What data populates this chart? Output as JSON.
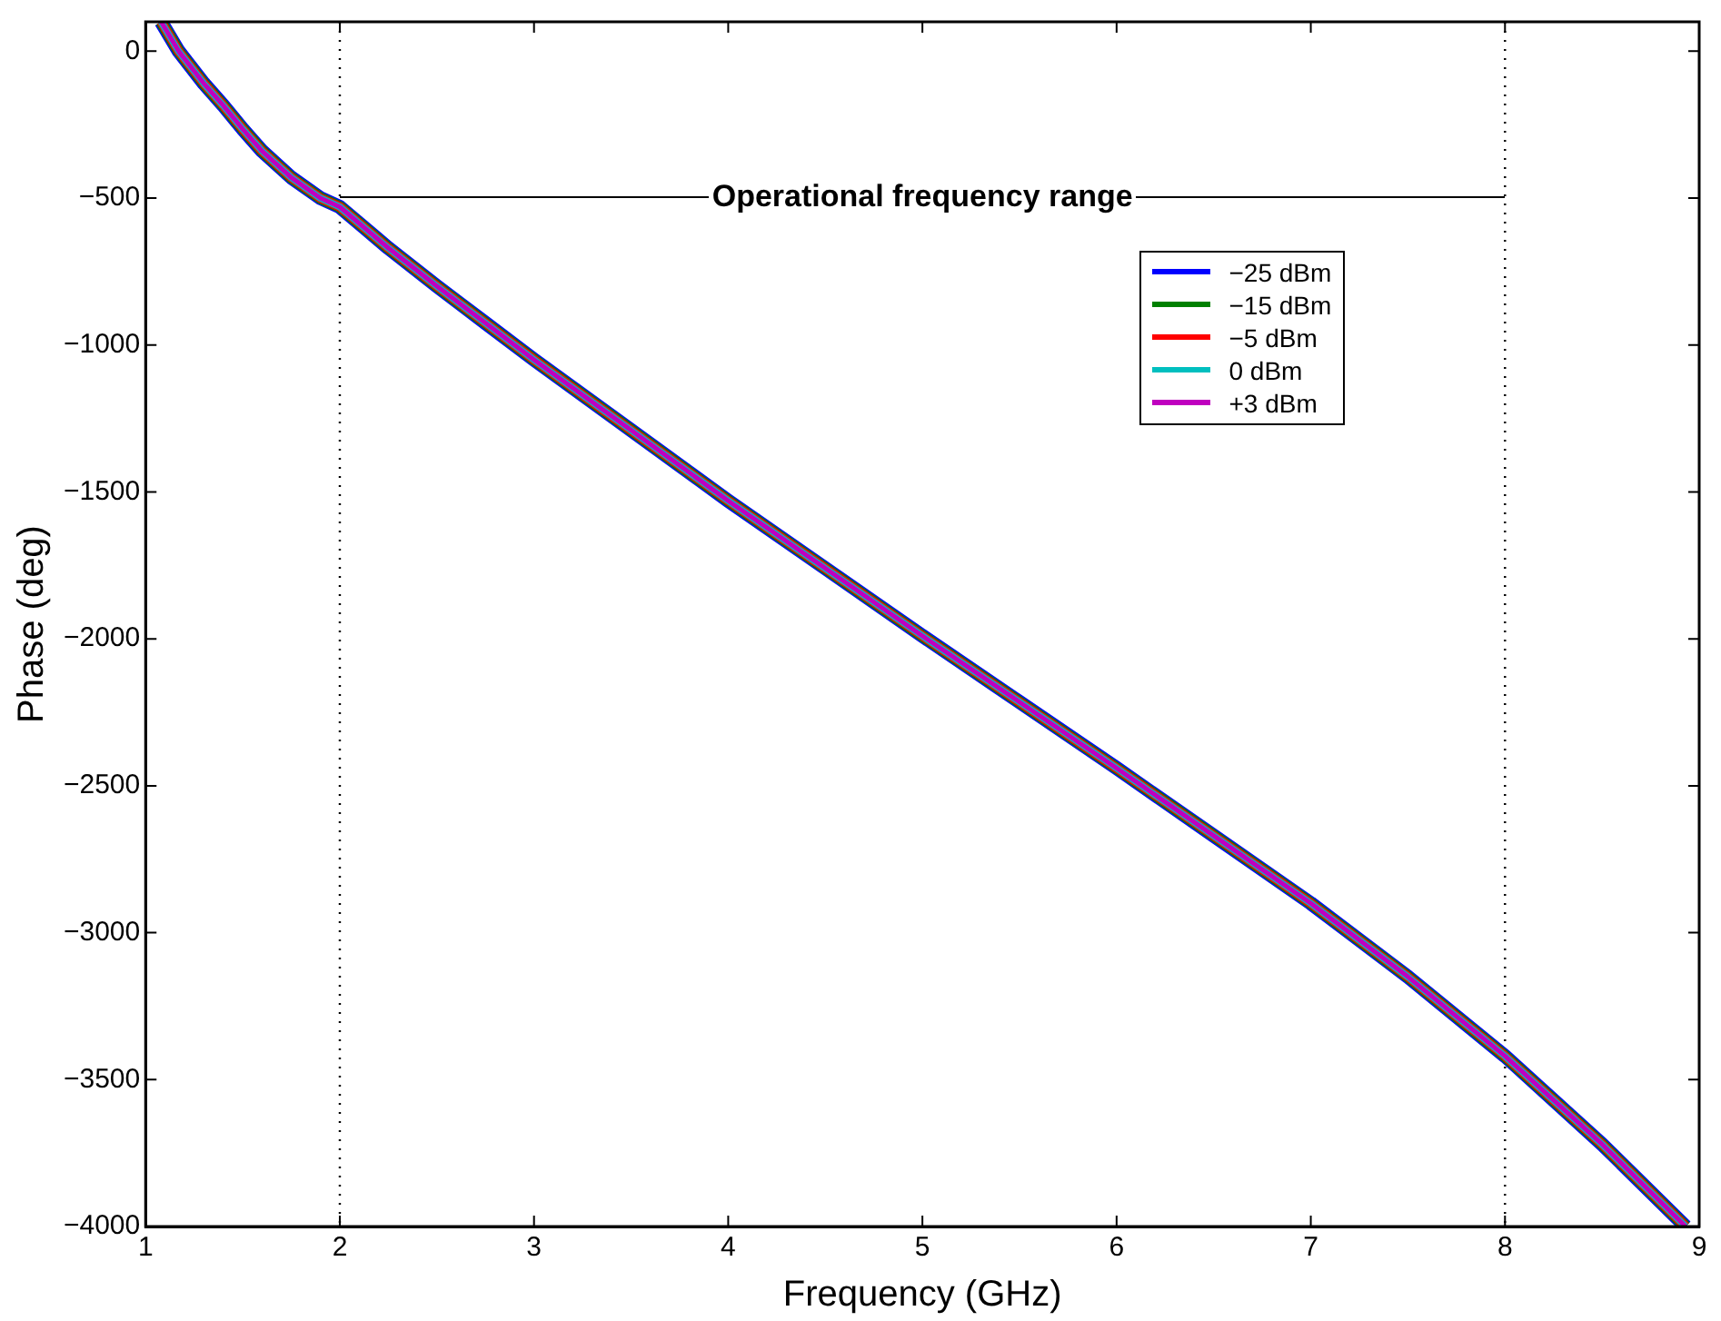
{
  "chart_data": {
    "type": "line",
    "xlabel": "Frequency (GHz)",
    "ylabel": "Phase (deg)",
    "x": [
      1.08,
      1.17,
      1.3,
      1.4,
      1.5,
      1.6,
      1.75,
      1.9,
      2,
      2.25,
      2.5,
      2.75,
      3,
      3.5,
      4,
      4.5,
      5,
      5.5,
      6,
      6.5,
      7,
      7.5,
      8,
      8.5,
      8.93
    ],
    "series": [
      {
        "name": "−25 dBm",
        "color": "#0000ff",
        "values": [
          100,
          0,
          -110,
          -185,
          -265,
          -340,
          -430,
          -500,
          -530,
          -670,
          -800,
          -925,
          -1050,
          -1290,
          -1530,
          -1760,
          -1990,
          -2215,
          -2440,
          -2670,
          -2900,
          -3150,
          -3420,
          -3720,
          -4000
        ]
      },
      {
        "name": "−15 dBm",
        "color": "#008000",
        "values": [
          100,
          0,
          -110,
          -185,
          -265,
          -340,
          -430,
          -500,
          -530,
          -670,
          -800,
          -925,
          -1050,
          -1290,
          -1530,
          -1760,
          -1990,
          -2215,
          -2440,
          -2670,
          -2900,
          -3150,
          -3420,
          -3720,
          -4000
        ]
      },
      {
        "name": "−5 dBm",
        "color": "#ff0000",
        "values": [
          100,
          0,
          -110,
          -185,
          -265,
          -340,
          -430,
          -500,
          -530,
          -670,
          -800,
          -925,
          -1050,
          -1290,
          -1530,
          -1760,
          -1990,
          -2215,
          -2440,
          -2670,
          -2900,
          -3150,
          -3420,
          -3720,
          -4000
        ]
      },
      {
        "name": "0 dBm",
        "color": "#00bfbf",
        "values": [
          100,
          0,
          -110,
          -185,
          -265,
          -340,
          -430,
          -500,
          -530,
          -670,
          -800,
          -925,
          -1050,
          -1290,
          -1530,
          -1760,
          -1990,
          -2215,
          -2440,
          -2670,
          -2900,
          -3150,
          -3420,
          -3720,
          -4000
        ]
      },
      {
        "name": "+3 dBm",
        "color": "#bf00bf",
        "values": [
          100,
          0,
          -110,
          -185,
          -265,
          -340,
          -430,
          -500,
          -530,
          -670,
          -800,
          -925,
          -1050,
          -1290,
          -1530,
          -1760,
          -1990,
          -2215,
          -2440,
          -2670,
          -2900,
          -3150,
          -3420,
          -3720,
          -4000
        ]
      }
    ],
    "xlim": [
      1,
      9
    ],
    "xticks": [
      1,
      2,
      3,
      4,
      5,
      6,
      7,
      8,
      9
    ],
    "ylim": [
      -4000,
      100
    ],
    "yticks": [
      {
        "value": -4000,
        "label": "−4000"
      },
      {
        "value": -3500,
        "label": "−3500"
      },
      {
        "value": -3000,
        "label": "−3000"
      },
      {
        "value": -2500,
        "label": "−2500"
      },
      {
        "value": -2000,
        "label": "−2000"
      },
      {
        "value": -1500,
        "label": "−1500"
      },
      {
        "value": -1000,
        "label": "−1000"
      },
      {
        "value": -500,
        "label": "−500"
      },
      0
    ],
    "ref_lines": [
      {
        "axis": "x",
        "value": 2,
        "line_style": "dotted"
      },
      {
        "axis": "x",
        "value": 8,
        "line_style": "dotted"
      }
    ],
    "annotations": [
      "Operational frequency range"
    ],
    "legend": "top right",
    "grid": false,
    "marker": "none",
    "line_style": "solid"
  }
}
